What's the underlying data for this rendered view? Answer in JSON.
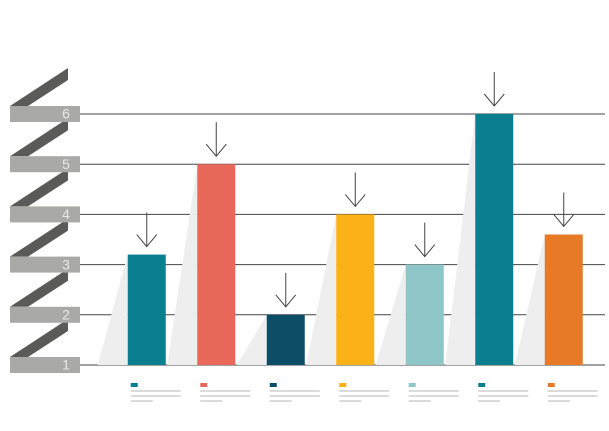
{
  "chart_data": {
    "type": "bar",
    "categories": [
      null,
      null,
      null,
      null,
      null,
      null,
      null
    ],
    "values": [
      3.2,
      5,
      2,
      4,
      3,
      6,
      3.6
    ],
    "colors": [
      "#0b7f8f",
      "#e8685a",
      "#0b4d67",
      "#fbb217",
      "#8ec6c8",
      "#0b7f8f",
      "#e67a27"
    ],
    "ylim": [
      1,
      6
    ],
    "yticks": [
      1,
      2,
      3,
      4,
      5,
      6
    ],
    "grid": true
  }
}
